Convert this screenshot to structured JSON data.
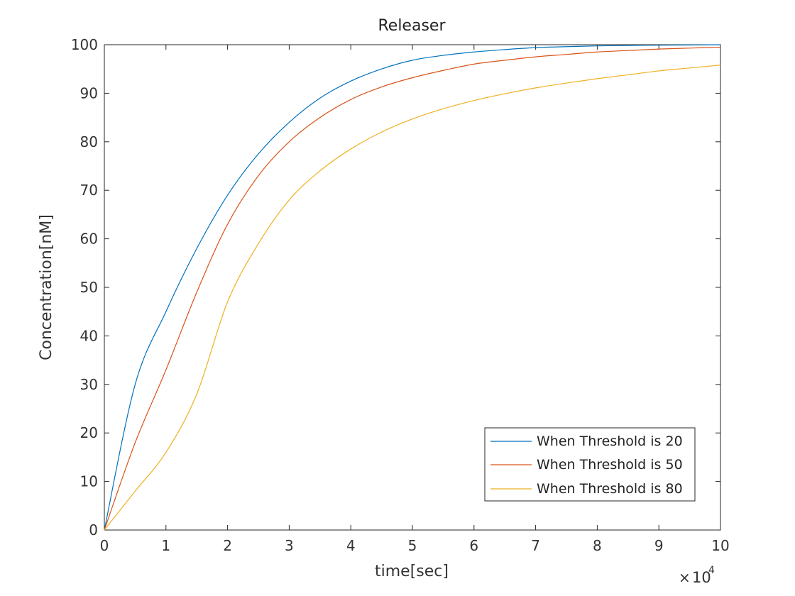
{
  "chart_data": {
    "type": "line",
    "title": "Releaser",
    "xlabel": "time[sec]",
    "ylabel": "Concentration[nM]",
    "x_exponent_label": {
      "times": "×",
      "base": "10",
      "exponent": "4"
    },
    "xlim": [
      0,
      10
    ],
    "ylim": [
      0,
      100
    ],
    "xticks": [
      "0",
      "1",
      "2",
      "3",
      "4",
      "5",
      "6",
      "7",
      "8",
      "9",
      "10"
    ],
    "yticks": [
      "0",
      "10",
      "20",
      "30",
      "40",
      "50",
      "60",
      "70",
      "80",
      "90",
      "100"
    ],
    "grid": false,
    "legend_position": "bottom-right",
    "x": [
      0,
      0.5,
      1,
      1.5,
      2,
      2.5,
      3,
      3.5,
      4,
      4.5,
      5,
      5.5,
      6,
      6.5,
      7,
      7.5,
      8,
      8.5,
      9,
      9.5,
      10
    ],
    "series": [
      {
        "name": "When Threshold is 20",
        "color": "#0072BD",
        "values": [
          0,
          30,
          45,
          58,
          69,
          77.5,
          84,
          89,
          92.5,
          95,
          96.8,
          97.8,
          98.5,
          99,
          99.4,
          99.6,
          99.75,
          99.85,
          99.9,
          99.95,
          100
        ]
      },
      {
        "name": "When Threshold is 50",
        "color": "#D95319",
        "values": [
          0,
          18,
          33,
          49,
          63,
          73,
          80,
          85,
          88.7,
          91.3,
          93.2,
          94.7,
          96,
          96.8,
          97.5,
          98,
          98.5,
          98.8,
          99.1,
          99.3,
          99.5
        ]
      },
      {
        "name": "When Threshold is 80",
        "color": "#EDB120",
        "values": [
          0,
          8,
          16,
          28,
          47,
          59,
          68,
          74,
          78.5,
          82,
          84.7,
          86.8,
          88.5,
          89.9,
          91.1,
          92.1,
          93,
          93.8,
          94.6,
          95.2,
          95.8
        ]
      }
    ]
  }
}
